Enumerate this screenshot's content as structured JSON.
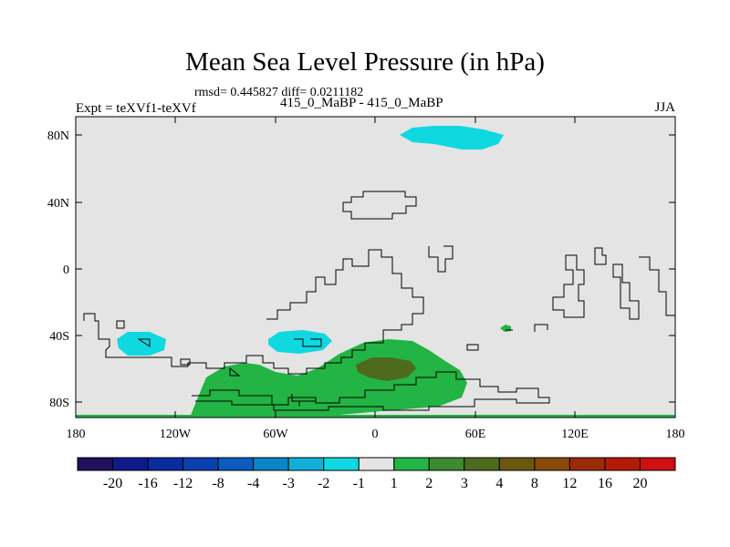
{
  "title": "Mean Sea Level Pressure (in hPa)",
  "stats": "rmsd= 0.445827 diff= 0.0211182",
  "expt": "Expt = teXVf1-teXVf",
  "runs": "415_0_MaBP - 415_0_MaBP",
  "season": "JJA",
  "axes": {
    "lat_ticks": [
      "80N",
      "40N",
      "0",
      "40S",
      "80S"
    ],
    "lon_ticks": [
      "180",
      "120W",
      "60W",
      "0",
      "60E",
      "120E",
      "180"
    ]
  },
  "colorbar": {
    "colors": [
      "#20105a",
      "#101a8a",
      "#0a2c9e",
      "#0a40b0",
      "#0a5cc0",
      "#0a86c8",
      "#12b0d8",
      "#10d8e0",
      "#e4e4e4",
      "#22b444",
      "#3a8a2e",
      "#4e6a1c",
      "#6a5810",
      "#8a4a0c",
      "#9a2c08",
      "#b41a08",
      "#d01010"
    ],
    "labels": [
      "-20",
      "-16",
      "-12",
      "-8",
      "-4",
      "-3",
      "-2",
      "-1",
      "1",
      "2",
      "3",
      "4",
      "8",
      "12",
      "16",
      "20"
    ]
  },
  "map_colors": {
    "background": "#e4e4e4",
    "positive_2": "#22b444",
    "positive_3": "#4e6a1c",
    "negative_1": "#10d8e0",
    "coast": "#000000"
  }
}
